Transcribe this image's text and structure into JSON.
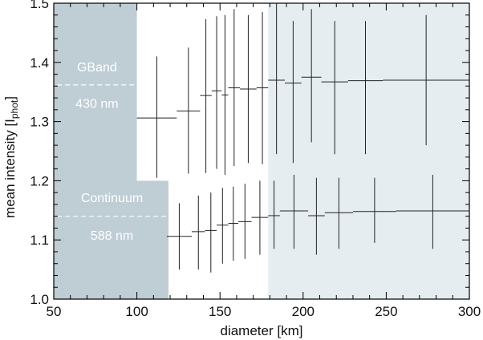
{
  "chart_data": {
    "type": "scatter",
    "title": "",
    "xlabel": "diameter  [km]",
    "ylabel": {
      "main": "mean intensity  [I",
      "sub": "phot",
      "close": "]"
    },
    "xlim": [
      50,
      300
    ],
    "ylim": [
      1.0,
      1.5
    ],
    "xticks": [
      50,
      100,
      150,
      200,
      250,
      300
    ],
    "xtick_labels": [
      "50",
      "100",
      "150",
      "200",
      "250",
      "300"
    ],
    "yticks": [
      1.0,
      1.1,
      1.2,
      1.3,
      1.4,
      1.5
    ],
    "ytick_labels": [
      "1.0",
      "1.1",
      "1.2",
      "1.3",
      "1.4",
      "1.5"
    ],
    "grid": false,
    "shaded_regions": [
      {
        "x0": 50,
        "x1": 100,
        "y0": 1.2,
        "y1": 1.5,
        "color": "#bfcdd5"
      },
      {
        "x0": 50,
        "x1": 119,
        "y0": 1.0,
        "y1": 1.2,
        "color": "#bfcdd5"
      },
      {
        "x0": 179,
        "x1": 300,
        "y0": 1.0,
        "y1": 1.5,
        "color": "#e6edf1"
      }
    ],
    "series": [
      {
        "name": "GBand",
        "points": [
          {
            "x0": 100,
            "x1": 124,
            "y": 1.306,
            "ylo": 1.205,
            "yhi": 1.41
          },
          {
            "x0": 124,
            "x1": 138,
            "y": 1.318,
            "ylo": 1.212,
            "yhi": 1.425
          },
          {
            "x0": 138,
            "x1": 145,
            "y": 1.344,
            "ylo": 1.213,
            "yhi": 1.473
          },
          {
            "x0": 145,
            "x1": 151,
            "y": 1.352,
            "ylo": 1.22,
            "yhi": 1.478
          },
          {
            "x0": 151,
            "x1": 155,
            "y": 1.345,
            "ylo": 1.21,
            "yhi": 1.48
          },
          {
            "x0": 155,
            "x1": 162,
            "y": 1.357,
            "ylo": 1.225,
            "yhi": 1.49
          },
          {
            "x0": 162,
            "x1": 172,
            "y": 1.355,
            "ylo": 1.23,
            "yhi": 1.48
          },
          {
            "x0": 172,
            "x1": 179,
            "y": 1.357,
            "ylo": 1.228,
            "yhi": 1.485
          },
          {
            "x0": 179,
            "x1": 189,
            "y": 1.37,
            "ylo": 1.245,
            "yhi": 1.5
          },
          {
            "x0": 189,
            "x1": 199,
            "y": 1.365,
            "ylo": 1.23,
            "yhi": 1.47
          },
          {
            "x0": 199,
            "x1": 211,
            "y": 1.375,
            "ylo": 1.265,
            "yhi": 1.49
          },
          {
            "x0": 211,
            "x1": 227,
            "y": 1.367,
            "ylo": 1.245,
            "yhi": 1.47
          },
          {
            "x0": 227,
            "x1": 248,
            "y": 1.369,
            "ylo": 1.245,
            "yhi": 1.47
          },
          {
            "x0": 248,
            "x1": 300,
            "y": 1.37,
            "ylo": 1.26,
            "yhi": 1.48
          }
        ]
      },
      {
        "name": "Continuum",
        "points": [
          {
            "x0": 118,
            "x1": 133,
            "y": 1.106,
            "ylo": 1.05,
            "yhi": 1.162
          },
          {
            "x0": 133,
            "x1": 141,
            "y": 1.114,
            "ylo": 1.05,
            "yhi": 1.175
          },
          {
            "x0": 141,
            "x1": 148,
            "y": 1.116,
            "ylo": 1.045,
            "yhi": 1.18
          },
          {
            "x0": 148,
            "x1": 155,
            "y": 1.125,
            "ylo": 1.06,
            "yhi": 1.188
          },
          {
            "x0": 155,
            "x1": 161,
            "y": 1.128,
            "ylo": 1.065,
            "yhi": 1.19
          },
          {
            "x0": 161,
            "x1": 169,
            "y": 1.131,
            "ylo": 1.068,
            "yhi": 1.195
          },
          {
            "x0": 169,
            "x1": 179,
            "y": 1.138,
            "ylo": 1.075,
            "yhi": 1.2
          },
          {
            "x0": 179,
            "x1": 186,
            "y": 1.141,
            "ylo": 1.085,
            "yhi": 1.2
          },
          {
            "x0": 186,
            "x1": 203,
            "y": 1.149,
            "ylo": 1.085,
            "yhi": 1.21
          },
          {
            "x0": 203,
            "x1": 213,
            "y": 1.141,
            "ylo": 1.075,
            "yhi": 1.205
          },
          {
            "x0": 213,
            "x1": 230,
            "y": 1.146,
            "ylo": 1.085,
            "yhi": 1.205
          },
          {
            "x0": 230,
            "x1": 256,
            "y": 1.148,
            "ylo": 1.095,
            "yhi": 1.205
          },
          {
            "x0": 256,
            "x1": 300,
            "y": 1.149,
            "ylo": 1.085,
            "yhi": 1.21
          }
        ]
      }
    ],
    "annotations": [
      {
        "name": "gband-annotation",
        "label_top": "GBand",
        "label_bottom": "430 nm",
        "x0": 52,
        "x1": 100,
        "y": 1.362,
        "y_top": 1.385,
        "y_bottom": 1.323
      },
      {
        "name": "continuum-annotation",
        "label_top": "Continuum",
        "label_bottom": "588 nm",
        "x0": 52,
        "x1": 118,
        "y": 1.14,
        "y_top": 1.164,
        "y_bottom": 1.1
      }
    ]
  }
}
